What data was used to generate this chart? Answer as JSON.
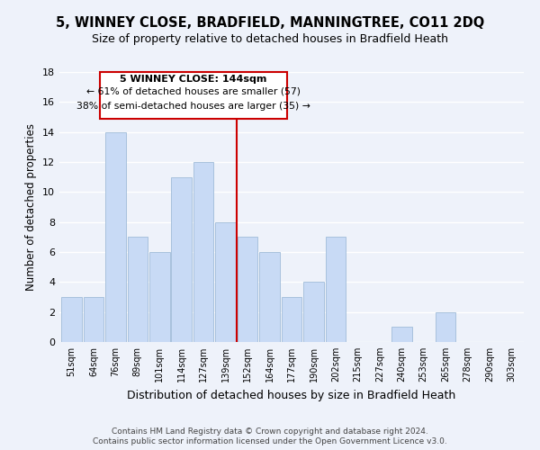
{
  "title1": "5, WINNEY CLOSE, BRADFIELD, MANNINGTREE, CO11 2DQ",
  "title2": "Size of property relative to detached houses in Bradfield Heath",
  "xlabel": "Distribution of detached houses by size in Bradfield Heath",
  "ylabel": "Number of detached properties",
  "bar_labels": [
    "51sqm",
    "64sqm",
    "76sqm",
    "89sqm",
    "101sqm",
    "114sqm",
    "127sqm",
    "139sqm",
    "152sqm",
    "164sqm",
    "177sqm",
    "190sqm",
    "202sqm",
    "215sqm",
    "227sqm",
    "240sqm",
    "253sqm",
    "265sqm",
    "278sqm",
    "290sqm",
    "303sqm"
  ],
  "bar_values": [
    3,
    3,
    14,
    7,
    6,
    11,
    12,
    8,
    7,
    6,
    3,
    4,
    7,
    0,
    0,
    1,
    0,
    2,
    0,
    0,
    0
  ],
  "bar_color": "#c8daf5",
  "bar_edge_color": "#a0bcd8",
  "vline_x": 7.5,
  "vline_color": "#cc0000",
  "annotation_title": "5 WINNEY CLOSE: 144sqm",
  "annotation_line1": "← 61% of detached houses are smaller (57)",
  "annotation_line2": "38% of semi-detached houses are larger (35) →",
  "annotation_box_color": "#ffffff",
  "annotation_box_edge": "#cc0000",
  "ylim": [
    0,
    18
  ],
  "yticks": [
    0,
    2,
    4,
    6,
    8,
    10,
    12,
    14,
    16,
    18
  ],
  "footer1": "Contains HM Land Registry data © Crown copyright and database right 2024.",
  "footer2": "Contains public sector information licensed under the Open Government Licence v3.0.",
  "background_color": "#eef2fa",
  "grid_color": "#ffffff",
  "title1_fontsize": 10.5,
  "title2_fontsize": 9,
  "xlabel_fontsize": 9,
  "ylabel_fontsize": 8.5,
  "footer_fontsize": 6.5
}
